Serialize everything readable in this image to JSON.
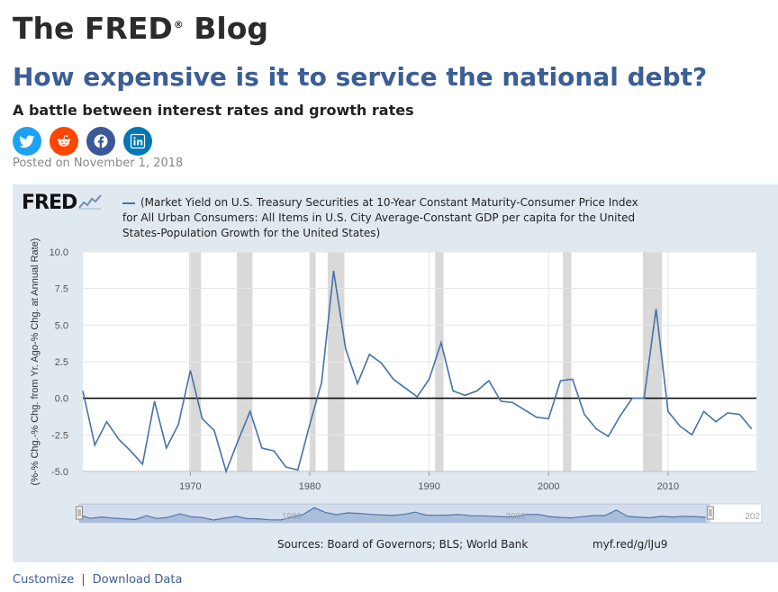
{
  "blog": {
    "title": "The FRED",
    "reg_mark": "®",
    "title_suffix": "Blog"
  },
  "post": {
    "title": "How expensive is it to service the national debt?",
    "subtitle": "A battle between interest rates and growth rates",
    "posted": "Posted on November 1, 2018"
  },
  "share": [
    {
      "name": "twitter-icon",
      "color": "#1da1f2"
    },
    {
      "name": "reddit-icon",
      "color": "#ff4500"
    },
    {
      "name": "facebook-icon",
      "color": "#3b5998"
    },
    {
      "name": "linkedin-icon",
      "color": "#0077b5"
    }
  ],
  "graph": {
    "logo": "FRED",
    "sources": "Sources: Board of Governors; BLS; World Bank",
    "shortlink": "myf.red/g/lJu9",
    "navigator_labels": [
      "1980",
      "2000",
      "202"
    ]
  },
  "footer": {
    "customize": "Customize",
    "separator": "|",
    "download": "Download Data"
  },
  "chart_data": {
    "type": "line",
    "series": [
      {
        "name": "(Market Yield on U.S. Treasury Securities at 10-Year Constant Maturity-Consumer Price Index for All Urban Consumers: All Items in U.S. City Average-Constant GDP per capita for the United States-Population Growth for the United States)",
        "color": "#4572a7",
        "x": [
          1961,
          1962,
          1963,
          1964,
          1965,
          1966,
          1967,
          1968,
          1969,
          1970,
          1971,
          1972,
          1973,
          1974,
          1975,
          1976,
          1977,
          1978,
          1979,
          1980,
          1981,
          1982,
          1983,
          1984,
          1985,
          1986,
          1987,
          1988,
          1989,
          1990,
          1991,
          1992,
          1993,
          1994,
          1995,
          1996,
          1997,
          1998,
          1999,
          2000,
          2001,
          2002,
          2003,
          2004,
          2005,
          2006,
          2007,
          2008,
          2009,
          2010,
          2011,
          2012,
          2013,
          2014,
          2015,
          2016,
          2017
        ],
        "y": [
          0.5,
          -3.2,
          -1.6,
          -2.8,
          -3.6,
          -4.5,
          -0.2,
          -3.4,
          -1.8,
          1.9,
          -1.4,
          -2.2,
          -5.0,
          -2.9,
          -0.9,
          -3.4,
          -3.6,
          -4.7,
          -4.9,
          -1.8,
          1.1,
          8.7,
          3.4,
          1.0,
          3.0,
          2.4,
          1.3,
          0.7,
          0.1,
          1.3,
          3.8,
          0.5,
          0.2,
          0.5,
          1.2,
          -0.2,
          -0.3,
          -0.8,
          -1.3,
          -1.4,
          1.2,
          1.3,
          -1.1,
          -2.1,
          -2.6,
          -1.2,
          0.0,
          0.0,
          6.1,
          -0.9,
          -1.9,
          -2.5,
          -0.9,
          -1.6,
          -1.0,
          -1.1,
          -2.1
        ]
      }
    ],
    "recessions": [
      [
        1969.9,
        1970.9
      ],
      [
        1973.9,
        1975.2
      ],
      [
        1980.0,
        1980.5
      ],
      [
        1981.5,
        1982.9
      ],
      [
        1990.5,
        1991.2
      ],
      [
        2001.2,
        2001.9
      ],
      [
        2007.9,
        2009.5
      ]
    ],
    "ylabel": "(%-% Chg.-% Chg. from Yr. Ago-% Chg. at Annual Rate)",
    "ylim": [
      -5.0,
      10.0
    ],
    "yticks": [
      "10.0",
      "7.5",
      "5.0",
      "2.5",
      "0.0",
      "-2.5",
      "-5.0"
    ],
    "xlim": [
      1961,
      2017.4
    ],
    "xticks": [
      "1970",
      "1980",
      "1990",
      "2000",
      "2010"
    ],
    "zero_line": true,
    "grid": true
  }
}
